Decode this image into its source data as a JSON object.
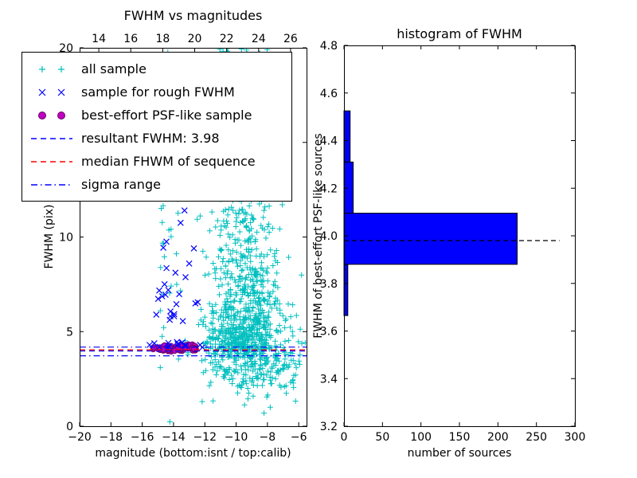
{
  "colors": {
    "all_sample": "#00bfbf",
    "rough_sample": "#0000ff",
    "psf_sample": "#bf00bf",
    "psf_sample_edge": "#6a006a",
    "resultant_line": "#0000ff",
    "median_line": "#ff0000",
    "sigma_line": "#0000ff",
    "hist_fill": "#0000ff",
    "hist_edge": "#000000",
    "axis": "#000000",
    "background": "#ffffff"
  },
  "legend": {
    "items": [
      {
        "label": "all sample",
        "marker": "plus",
        "color_key": "all_sample"
      },
      {
        "label": "sample for rough FWHM",
        "marker": "x",
        "color_key": "rough_sample"
      },
      {
        "label": "best-effort PSF-like sample",
        "marker": "circle",
        "color_key": "psf_sample"
      },
      {
        "label": "resultant FWHM: 3.98",
        "line": "dashed",
        "color_key": "resultant_line"
      },
      {
        "label": "median FHWM of sequence",
        "line": "dashed",
        "color_key": "median_line"
      },
      {
        "label": "sigma range",
        "line": "dashdot",
        "color_key": "sigma_line"
      }
    ]
  },
  "chart_data": [
    {
      "type": "scatter",
      "title": "FWHM vs magnitudes",
      "xlabel": "magnitude (bottom:isnt / top:calib)",
      "ylabel": "FWHM (pix)",
      "xlim": [
        -20,
        -5.5
      ],
      "ylim": [
        0,
        20
      ],
      "x_ticks": [
        -20,
        -18,
        -16,
        -14,
        -12,
        -10,
        -8,
        -6
      ],
      "y_ticks": [
        0,
        5,
        10,
        15,
        20
      ],
      "top_axis_lim": [
        12.8,
        27.0
      ],
      "top_x_ticks": [
        14,
        16,
        18,
        20,
        22,
        24,
        26
      ],
      "grid": false,
      "legend_position": "upper left",
      "series": [
        {
          "name": "all sample",
          "marker": "+",
          "color": "#00bfbf",
          "clusters": [
            {
              "cx": -9.4,
              "cy": 4.6,
              "sx": 1.0,
              "sy": 1.0,
              "n": 350
            },
            {
              "cx": -9.3,
              "cy": 6.5,
              "sx": 1.1,
              "sy": 1.5,
              "n": 240
            },
            {
              "cx": -9.2,
              "cy": 10.0,
              "sx": 1.0,
              "sy": 2.2,
              "n": 170
            },
            {
              "cx": -9.5,
              "cy": 15.0,
              "sx": 0.9,
              "sy": 2.5,
              "n": 110
            },
            {
              "cx": -9.4,
              "cy": 19.2,
              "sx": 0.9,
              "sy": 1.6,
              "n": 110
            },
            {
              "cx": -14.4,
              "cy": 10.0,
              "sx": 0.35,
              "sy": 5.0,
              "n": 45
            },
            {
              "cx": -11.1,
              "cy": 11.0,
              "sx": 0.7,
              "sy": 4.5,
              "n": 70
            },
            {
              "cx": -7.4,
              "cy": 3.2,
              "sx": 0.9,
              "sy": 0.9,
              "n": 90
            },
            {
              "cx": -9.8,
              "cy": 2.6,
              "sx": 1.2,
              "sy": 0.5,
              "n": 50
            },
            {
              "cx": -11.3,
              "cy": 4.3,
              "sx": 0.6,
              "sy": 0.7,
              "n": 50
            }
          ]
        },
        {
          "name": "sample for rough FWHM",
          "marker": "x",
          "color": "#0000ff",
          "clusters": [
            {
              "cx": -14.15,
              "cy": 7.0,
              "sx": 0.55,
              "sy": 1.3,
              "n": 20
            },
            {
              "cx": -13.8,
              "cy": 4.25,
              "sx": 0.8,
              "sy": 0.12,
              "n": 14
            }
          ],
          "points": [
            [
              -13.3,
              11.4
            ],
            [
              -13.55,
              10.75
            ],
            [
              -12.7,
              9.4
            ],
            [
              -13.0,
              8.6
            ],
            [
              -12.45,
              6.55
            ],
            [
              -15.1,
              5.9
            ],
            [
              -14.9,
              4.2
            ],
            [
              -12.3,
              4.3
            ]
          ]
        },
        {
          "name": "best-effort PSF-like sample",
          "marker": "o",
          "color": "#bf00bf",
          "edge_color": "#6a006a",
          "blob": {
            "x_min": -15.3,
            "x_max": -12.55,
            "cy": 4.15,
            "sy": 0.1,
            "n": 70
          }
        }
      ],
      "lines": [
        {
          "name": "resultant FWHM",
          "y": 3.98,
          "style": "dashed",
          "color": "#0000ff"
        },
        {
          "name": "median FHWM of sequence",
          "y": 4.04,
          "style": "dashed",
          "color": "#ff0000"
        },
        {
          "name": "sigma range low",
          "y": 3.72,
          "style": "dashdot",
          "color": "#0000ff"
        },
        {
          "name": "sigma range high",
          "y": 4.18,
          "style": "dashdot",
          "color": "#0000ff"
        }
      ]
    },
    {
      "type": "bar",
      "orientation": "horizontal",
      "title": "histogram of FWHM",
      "xlabel": "number of sources",
      "ylabel": "FWHM of best-effort PSF-like sources",
      "xlim": [
        0,
        300
      ],
      "ylim": [
        3.2,
        4.8
      ],
      "x_ticks": [
        0,
        50,
        100,
        150,
        200,
        250,
        300
      ],
      "y_ticks": [
        3.2,
        3.4,
        3.6,
        3.8,
        4.0,
        4.2,
        4.4,
        4.6,
        4.8
      ],
      "grid": false,
      "bins": [
        {
          "from": 3.665,
          "to": 3.88,
          "count": 5
        },
        {
          "from": 3.88,
          "to": 4.095,
          "count": 225
        },
        {
          "from": 4.095,
          "to": 4.31,
          "count": 12
        },
        {
          "from": 4.31,
          "to": 4.525,
          "count": 8
        }
      ],
      "dashed_line": {
        "y": 3.98,
        "x_end": 280,
        "color": "#000000",
        "style": "dashed"
      }
    }
  ]
}
